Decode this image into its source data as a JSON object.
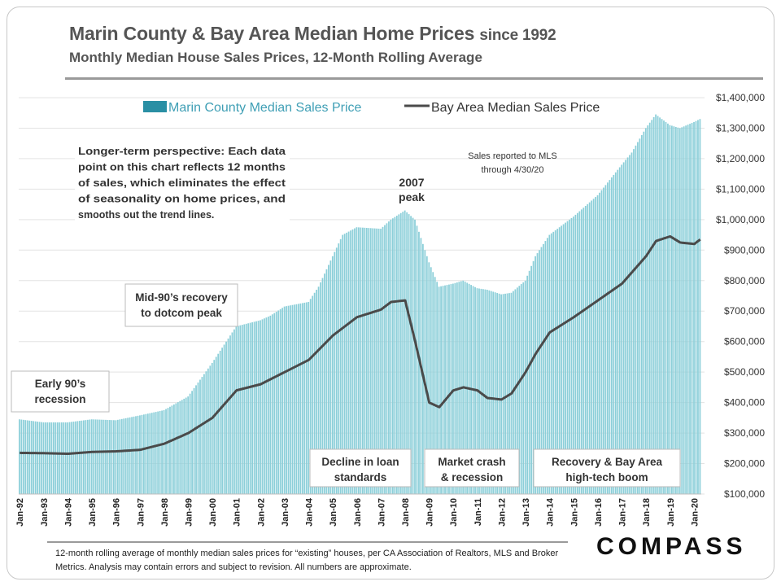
{
  "title_main": "Marin County  & Bay Area Median Home Prices",
  "title_suffix": "since 1992",
  "subtitle": "Monthly Median House Sales Prices, 12-Month Rolling Average",
  "footnote": "12-month rolling average of monthly median sales prices for “existing” houses, per CA Association of Realtors, MLS and Broker Metrics.  Analysis may contain errors and subject to revision. All numbers are approximate.",
  "brand": "COMPASS",
  "annotations": {
    "perspective": [
      "Longer-term perspective:  Each data",
      "point on this chart reflects 12 months",
      "of sales, which eliminates the effect",
      "of seasonality on home prices, and",
      "smooths out the trend lines."
    ],
    "sales_reported": [
      "Sales reported to MLS",
      "through 4/30/20"
    ],
    "peak_2007": [
      "2007",
      "peak"
    ],
    "mid90s": [
      "Mid-90’s recovery",
      "to dotcom peak"
    ],
    "early90s": [
      "Early 90’s",
      "recession"
    ],
    "decline_loan": [
      "Decline in loan",
      "standards"
    ],
    "market_crash": [
      "Market crash",
      "& recession"
    ],
    "recovery": [
      "Recovery & Bay Area",
      "high-tech boom"
    ]
  },
  "colors": {
    "bar": "#8ccfd9",
    "legend_bar": "#2a8fa4",
    "line": "#4a4a4a",
    "legend_text_marin": "#3f9fb5",
    "text": "#555555"
  },
  "chart_data": {
    "type": "bar",
    "x_start": "Jan-92",
    "x_end": "Apr-20",
    "x_tick_labels": [
      "Jan-92",
      "Jan-93",
      "Jan-94",
      "Jan-95",
      "Jan-96",
      "Jan-97",
      "Jan-98",
      "Jan-99",
      "Jan-00",
      "Jan-01",
      "Jan-02",
      "Jan-03",
      "Jan-04",
      "Jan-05",
      "Jan-06",
      "Jan-07",
      "Jan-08",
      "Jan-09",
      "Jan-10",
      "Jan-11",
      "Jan-12",
      "Jan-13",
      "Jan-14",
      "Jan-15",
      "Jan-16",
      "Jan-17",
      "Jan-18",
      "Jan-19",
      "Jan-20"
    ],
    "y_axis_side": "right",
    "ylim": [
      100000,
      1400000
    ],
    "y_tick_labels": [
      "$100,000",
      "$200,000",
      "$300,000",
      "$400,000",
      "$500,000",
      "$600,000",
      "$700,000",
      "$800,000",
      "$900,000",
      "$1,000,000",
      "$1,100,000",
      "$1,200,000",
      "$1,300,000",
      "$1,400,000"
    ],
    "grid": "horizontal",
    "legend_position": "top",
    "series": [
      {
        "name": "Marin County Median Sales Price",
        "render": "bar",
        "monthly": true,
        "anchors": [
          [
            "1992-01",
            345000
          ],
          [
            "1993-01",
            335000
          ],
          [
            "1994-01",
            335000
          ],
          [
            "1995-01",
            345000
          ],
          [
            "1996-01",
            342000
          ],
          [
            "1997-01",
            358000
          ],
          [
            "1998-01",
            375000
          ],
          [
            "1999-01",
            420000
          ],
          [
            "2000-01",
            530000
          ],
          [
            "2001-01",
            650000
          ],
          [
            "2002-01",
            670000
          ],
          [
            "2002-06",
            685000
          ],
          [
            "2003-01",
            715000
          ],
          [
            "2004-01",
            730000
          ],
          [
            "2004-06",
            780000
          ],
          [
            "2005-01",
            880000
          ],
          [
            "2005-06",
            950000
          ],
          [
            "2006-01",
            975000
          ],
          [
            "2007-01",
            970000
          ],
          [
            "2007-06",
            1000000
          ],
          [
            "2008-01",
            1030000
          ],
          [
            "2008-06",
            1000000
          ],
          [
            "2009-01",
            860000
          ],
          [
            "2009-06",
            780000
          ],
          [
            "2010-01",
            790000
          ],
          [
            "2010-06",
            800000
          ],
          [
            "2011-01",
            775000
          ],
          [
            "2011-06",
            770000
          ],
          [
            "2012-01",
            755000
          ],
          [
            "2012-06",
            760000
          ],
          [
            "2013-01",
            800000
          ],
          [
            "2013-06",
            880000
          ],
          [
            "2014-01",
            950000
          ],
          [
            "2015-01",
            1010000
          ],
          [
            "2016-01",
            1080000
          ],
          [
            "2017-01",
            1180000
          ],
          [
            "2017-06",
            1220000
          ],
          [
            "2018-01",
            1300000
          ],
          [
            "2018-06",
            1345000
          ],
          [
            "2019-01",
            1310000
          ],
          [
            "2019-06",
            1300000
          ],
          [
            "2020-01",
            1320000
          ],
          [
            "2020-04",
            1330000
          ]
        ]
      },
      {
        "name": "Bay Area Median Sales Price",
        "render": "line",
        "monthly": true,
        "anchors": [
          [
            "1992-01",
            235000
          ],
          [
            "1993-01",
            234000
          ],
          [
            "1994-01",
            232000
          ],
          [
            "1995-01",
            238000
          ],
          [
            "1996-01",
            240000
          ],
          [
            "1997-01",
            245000
          ],
          [
            "1998-01",
            265000
          ],
          [
            "1999-01",
            300000
          ],
          [
            "2000-01",
            350000
          ],
          [
            "2001-01",
            440000
          ],
          [
            "2002-01",
            460000
          ],
          [
            "2003-01",
            500000
          ],
          [
            "2004-01",
            540000
          ],
          [
            "2005-01",
            620000
          ],
          [
            "2006-01",
            680000
          ],
          [
            "2007-01",
            705000
          ],
          [
            "2007-06",
            730000
          ],
          [
            "2008-01",
            735000
          ],
          [
            "2008-06",
            600000
          ],
          [
            "2009-01",
            400000
          ],
          [
            "2009-06",
            385000
          ],
          [
            "2010-01",
            440000
          ],
          [
            "2010-06",
            450000
          ],
          [
            "2011-01",
            440000
          ],
          [
            "2011-06",
            415000
          ],
          [
            "2012-01",
            410000
          ],
          [
            "2012-06",
            430000
          ],
          [
            "2013-01",
            500000
          ],
          [
            "2013-06",
            560000
          ],
          [
            "2014-01",
            630000
          ],
          [
            "2015-01",
            680000
          ],
          [
            "2016-01",
            735000
          ],
          [
            "2017-01",
            790000
          ],
          [
            "2018-01",
            880000
          ],
          [
            "2018-06",
            930000
          ],
          [
            "2019-01",
            945000
          ],
          [
            "2019-06",
            925000
          ],
          [
            "2020-01",
            920000
          ],
          [
            "2020-04",
            935000
          ]
        ]
      }
    ]
  }
}
